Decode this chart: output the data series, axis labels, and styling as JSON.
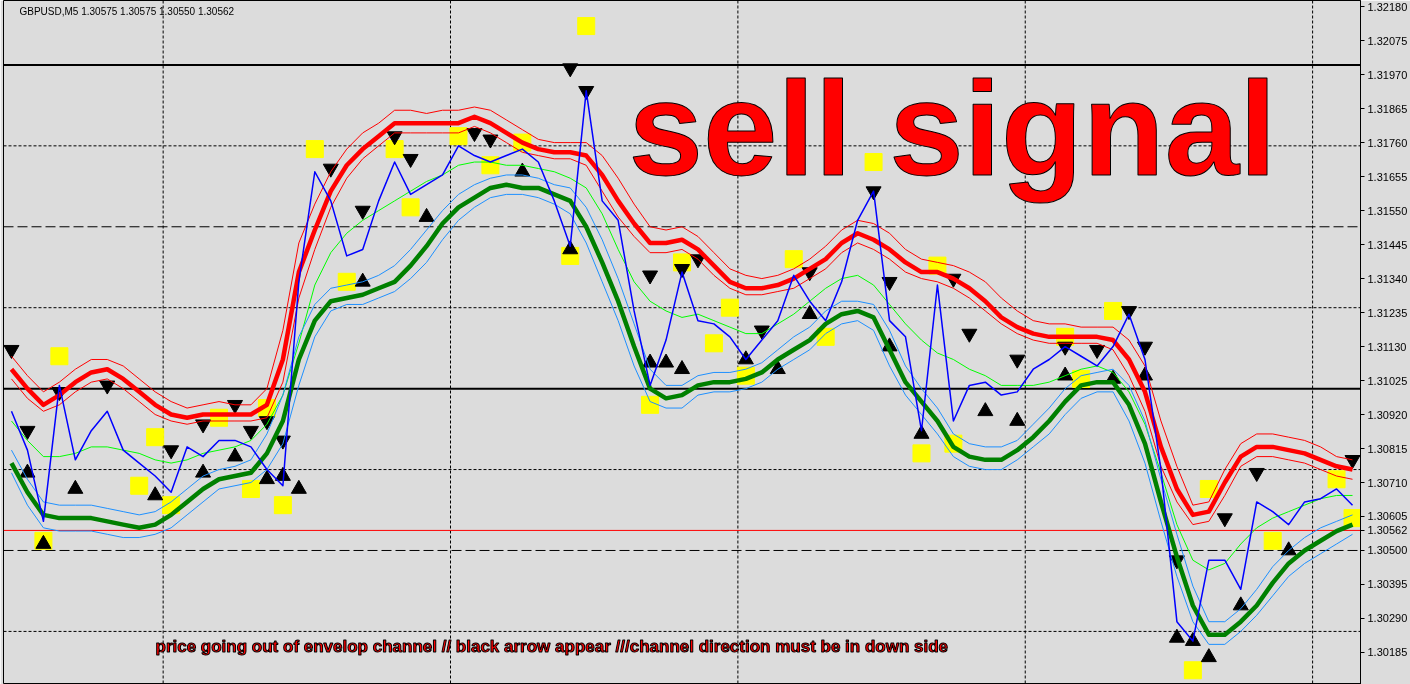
{
  "chart_data": {
    "type": "line",
    "title": "GBPUSD,M5 1.30575 1.30575 1.30550 1.30562",
    "annotations": [
      "sell signal",
      "price going out of envelop channel // black arrow appear ///channel direction must be in down side"
    ],
    "categories": [
      null,
      null,
      null,
      null,
      null,
      null,
      null,
      null,
      null,
      null,
      null,
      null,
      null,
      null,
      null,
      null,
      null,
      null,
      null,
      null,
      null,
      null,
      null,
      null,
      null,
      null,
      null,
      null,
      null,
      null,
      null,
      null,
      null,
      null,
      null,
      null,
      null,
      null,
      null,
      null,
      null,
      null,
      null,
      null,
      null,
      null,
      null,
      null,
      null,
      null,
      null,
      null,
      null,
      null,
      null,
      null,
      null,
      null,
      null,
      null,
      null,
      null,
      null,
      null,
      null,
      null,
      null,
      null,
      null,
      null,
      null,
      null,
      null,
      null,
      null,
      null,
      null,
      null,
      null,
      null,
      null,
      null,
      null,
      null,
      null
    ],
    "series": [
      {
        "color": "#ff0000",
        "values": [
          1.311,
          1.3104,
          1.3099,
          1.3102,
          1.3106,
          1.3109,
          1.3109,
          1.3107,
          1.3103,
          1.3099,
          1.3096,
          1.3094,
          1.3095,
          1.3096,
          1.3095,
          1.3095,
          1.31,
          1.3118,
          1.3145,
          1.3157,
          1.3167,
          1.3174,
          1.3179,
          1.3182,
          1.3186,
          1.3186,
          1.3185,
          1.3186,
          1.3186,
          1.3187,
          1.3186,
          1.3183,
          1.318,
          1.3177,
          1.3176,
          1.3176,
          1.3176,
          1.3172,
          1.3165,
          1.3157,
          1.315,
          1.3149,
          1.315,
          1.3147,
          1.3142,
          1.3137,
          1.3135,
          1.3134,
          1.3135,
          1.3137,
          1.314,
          1.3144,
          1.3149,
          1.3152,
          1.3151,
          1.3148,
          1.3143,
          1.314,
          1.3139,
          1.3138,
          1.3136,
          1.3133,
          1.3128,
          1.3124,
          1.3121,
          1.312,
          1.312,
          1.3119,
          1.3119,
          1.3119,
          1.3115,
          1.3107,
          1.309,
          1.3076,
          1.3064,
          1.3065,
          1.3075,
          1.3083,
          1.3086,
          1.3086,
          1.3085,
          1.3084,
          1.3082,
          1.3079,
          1.3078
        ]
      },
      {
        "color": "#ff0000",
        "values": [
          1.3103,
          1.3097,
          1.3093,
          1.3095,
          1.3099,
          1.3102,
          1.3103,
          1.31,
          1.3096,
          1.3092,
          1.309,
          1.3089,
          1.309,
          1.309,
          1.309,
          1.309,
          1.3091,
          1.3102,
          1.3128,
          1.3143,
          1.3156,
          1.3165,
          1.3171,
          1.3175,
          1.3179,
          1.3179,
          1.3179,
          1.3179,
          1.3179,
          1.3181,
          1.3179,
          1.3176,
          1.3173,
          1.3172,
          1.3171,
          1.3171,
          1.3169,
          1.3161,
          1.3153,
          1.3147,
          1.3142,
          1.3142,
          1.3143,
          1.314,
          1.3135,
          1.3131,
          1.3129,
          1.3129,
          1.313,
          1.3131,
          1.3134,
          1.3137,
          1.3142,
          1.3145,
          1.3143,
          1.314,
          1.3136,
          1.3134,
          1.3133,
          1.3131,
          1.3128,
          1.3124,
          1.312,
          1.3117,
          1.3115,
          1.3114,
          1.3114,
          1.3114,
          1.3114,
          1.3112,
          1.3104,
          1.3093,
          1.3076,
          1.3065,
          1.3058,
          1.3059,
          1.3067,
          1.3076,
          1.3079,
          1.3079,
          1.3078,
          1.3077,
          1.3075,
          1.3073,
          1.3072
        ]
      },
      {
        "color": "#00ff00",
        "values": [
          1.309,
          1.3084,
          1.3079,
          1.3079,
          1.308,
          1.3082,
          1.3082,
          1.3081,
          1.308,
          1.3078,
          1.3077,
          1.3078,
          1.308,
          1.3081,
          1.3082,
          1.3084,
          1.3089,
          1.3098,
          1.3114,
          1.3132,
          1.3142,
          1.3148,
          1.3152,
          1.3155,
          1.3158,
          1.3161,
          1.3164,
          1.3166,
          1.3169,
          1.317,
          1.317,
          1.3169,
          1.3169,
          1.3168,
          1.3167,
          1.3165,
          1.3162,
          1.3154,
          1.3143,
          1.3133,
          1.3127,
          1.3124,
          1.3122,
          1.3123,
          1.3121,
          1.3119,
          1.3117,
          1.3117,
          1.312,
          1.3123,
          1.3127,
          1.3131,
          1.3134,
          1.3135,
          1.3132,
          1.3126,
          1.312,
          1.3115,
          1.3111,
          1.3109,
          1.3106,
          1.3104,
          1.3101,
          1.3101,
          1.3101,
          1.3102,
          1.3104,
          1.3106,
          1.3107,
          1.3105,
          1.3099,
          1.3089,
          1.3074,
          1.3058,
          1.3047,
          1.3044,
          1.3046,
          1.3052,
          1.3057,
          1.306,
          1.3062,
          1.3064,
          1.3066,
          1.3067,
          1.3067
        ]
      },
      {
        "color": "#1e90ff",
        "values": [
          1.3081,
          1.3072,
          1.3065,
          1.3064,
          1.3064,
          1.3064,
          1.3063,
          1.3062,
          1.3061,
          1.3062,
          1.3065,
          1.3069,
          1.3073,
          1.3075,
          1.3076,
          1.3078,
          1.3086,
          1.3098,
          1.3116,
          1.3126,
          1.3131,
          1.3132,
          1.3133,
          1.3135,
          1.3138,
          1.3143,
          1.3149,
          1.3155,
          1.316,
          1.3163,
          1.3165,
          1.3166,
          1.3166,
          1.3165,
          1.3163,
          1.3162,
          1.3156,
          1.3146,
          1.3134,
          1.312,
          1.3106,
          1.3101,
          1.3101,
          1.3104,
          1.3105,
          1.3105,
          1.3106,
          1.3108,
          1.3112,
          1.3116,
          1.3119,
          1.3124,
          1.3127,
          1.3127,
          1.3126,
          1.3118,
          1.3107,
          1.31,
          1.3094,
          1.3086,
          1.3083,
          1.3082,
          1.3082,
          1.3084,
          1.3089,
          1.3094,
          1.31,
          1.3104,
          1.3105,
          1.3106,
          1.3101,
          1.309,
          1.3072,
          1.3055,
          1.3039,
          1.3028,
          1.3028,
          1.3032,
          1.3038,
          1.3045,
          1.305,
          1.3054,
          1.3057,
          1.3059,
          1.3061
        ]
      },
      {
        "color": "#1e90ff",
        "values": [
          1.3074,
          1.3064,
          1.3057,
          1.3056,
          1.3056,
          1.3056,
          1.3055,
          1.3054,
          1.3054,
          1.3055,
          1.3057,
          1.3061,
          1.3065,
          1.3069,
          1.307,
          1.3071,
          1.3075,
          1.3083,
          1.3101,
          1.3116,
          1.3124,
          1.3126,
          1.3126,
          1.3128,
          1.313,
          1.3134,
          1.3139,
          1.3146,
          1.3152,
          1.3156,
          1.3159,
          1.316,
          1.316,
          1.3159,
          1.3157,
          1.3154,
          1.3145,
          1.3133,
          1.3121,
          1.3107,
          1.3096,
          1.3094,
          1.3094,
          1.3098,
          1.3099,
          1.3099,
          1.31,
          1.3102,
          1.3106,
          1.3109,
          1.3112,
          1.3117,
          1.312,
          1.3121,
          1.3118,
          1.3107,
          1.3098,
          1.3092,
          1.3086,
          1.3079,
          1.3076,
          1.3075,
          1.3075,
          1.3078,
          1.3082,
          1.3086,
          1.3092,
          1.3097,
          1.3099,
          1.3099,
          1.309,
          1.3077,
          1.3059,
          1.3042,
          1.3028,
          1.3021,
          1.3021,
          1.3025,
          1.303,
          1.3036,
          1.3042,
          1.3046,
          1.3049,
          1.3052,
          1.3055
        ]
      },
      {
        "color": "#ff0000",
        "values": [
          1.3106,
          1.31,
          1.3095,
          1.3098,
          1.3102,
          1.3105,
          1.3106,
          1.3103,
          1.3099,
          1.3095,
          1.3092,
          1.3091,
          1.3092,
          1.3092,
          1.3092,
          1.3092,
          1.3095,
          1.3109,
          1.3136,
          1.3149,
          1.3161,
          1.3169,
          1.3174,
          1.3178,
          1.3182,
          1.3182,
          1.3182,
          1.3182,
          1.3182,
          1.3184,
          1.3182,
          1.3179,
          1.3176,
          1.3174,
          1.3173,
          1.3173,
          1.3172,
          1.3166,
          1.3158,
          1.3151,
          1.3145,
          1.3145,
          1.3146,
          1.3143,
          1.3138,
          1.3133,
          1.3131,
          1.3131,
          1.3132,
          1.3134,
          1.3137,
          1.314,
          1.3145,
          1.3148,
          1.3146,
          1.3143,
          1.3139,
          1.3136,
          1.3136,
          1.3134,
          1.3131,
          1.3127,
          1.3122,
          1.3119,
          1.3117,
          1.3116,
          1.3116,
          1.3116,
          1.3116,
          1.3115,
          1.3109,
          1.3099,
          1.3082,
          1.3069,
          1.3061,
          1.3062,
          1.3071,
          1.3079,
          1.3082,
          1.3082,
          1.3081,
          1.308,
          1.3078,
          1.3076,
          1.3075
        ]
      },
      {
        "color": "#008000",
        "values": [
          1.3077,
          1.3068,
          1.3061,
          1.306,
          1.306,
          1.306,
          1.3059,
          1.3058,
          1.3057,
          1.3058,
          1.3061,
          1.3065,
          1.3069,
          1.3072,
          1.3073,
          1.3074,
          1.308,
          1.309,
          1.3109,
          1.3121,
          1.3127,
          1.3128,
          1.3129,
          1.3131,
          1.3133,
          1.3138,
          1.3144,
          1.3151,
          1.3156,
          1.3159,
          1.3162,
          1.3163,
          1.3162,
          1.3162,
          1.316,
          1.3158,
          1.315,
          1.3139,
          1.3127,
          1.3113,
          1.31,
          1.3097,
          1.3098,
          1.3101,
          1.3102,
          1.3102,
          1.3103,
          1.3105,
          1.3109,
          1.3112,
          1.3115,
          1.312,
          1.3123,
          1.3124,
          1.3122,
          1.3112,
          1.3102,
          1.3096,
          1.309,
          1.3082,
          1.3079,
          1.3078,
          1.3078,
          1.3081,
          1.3085,
          1.309,
          1.3096,
          1.3101,
          1.3102,
          1.3102,
          1.3095,
          1.3083,
          1.3065,
          1.3048,
          1.3033,
          1.3024,
          1.3024,
          1.3028,
          1.3033,
          1.304,
          1.3046,
          1.305,
          1.3053,
          1.3056,
          1.3058
        ]
      },
      {
        "color": "#0000ff",
        "values": [
          1.3093,
          1.3081,
          1.3059,
          1.3101,
          1.3078,
          1.3087,
          1.3093,
          1.3081,
          1.3077,
          1.3073,
          1.3068,
          1.3082,
          1.3079,
          1.3084,
          1.3084,
          1.3082,
          1.3075,
          1.307,
          1.3133,
          1.3167,
          1.3158,
          1.3141,
          1.3143,
          1.3158,
          1.317,
          1.316,
          1.3163,
          1.3166,
          1.3175,
          1.3172,
          1.317,
          1.3172,
          1.3174,
          1.317,
          1.3158,
          1.3144,
          1.3192,
          1.3158,
          1.3152,
          1.3124,
          1.3101,
          1.3115,
          1.3136,
          1.3121,
          1.312,
          1.3116,
          1.3109,
          1.3115,
          1.3121,
          1.3135,
          1.3127,
          1.3121,
          1.3133,
          1.3152,
          1.3161,
          1.3121,
          1.3116,
          1.3087,
          1.3132,
          1.309,
          1.3101,
          1.3102,
          1.3098,
          1.3099,
          1.3106,
          1.3109,
          1.3113,
          1.311,
          1.3107,
          1.3113,
          1.3123,
          1.3109,
          1.3075,
          1.3028,
          1.3022,
          1.3047,
          1.3047,
          1.3038,
          1.3065,
          1.3062,
          1.3058,
          1.3065,
          1.3066,
          1.3069,
          1.3064
        ]
      },
      {
        "type": "scatter",
        "marker": "square",
        "color": "#ffff00",
        "values": [
          null,
          null,
          1.3053,
          1.311,
          null,
          null,
          null,
          null,
          1.307,
          1.3085,
          1.3064,
          null,
          null,
          1.3091,
          null,
          1.3069,
          1.3094,
          1.3064,
          null,
          1.3174,
          null,
          1.3133,
          null,
          null,
          1.3174,
          1.3156,
          null,
          null,
          1.3178,
          null,
          1.3169,
          null,
          1.3176,
          null,
          null,
          1.3141,
          1.3212,
          null,
          null,
          null,
          1.3095,
          null,
          1.3139,
          null,
          1.3114,
          1.3125,
          1.3104,
          null,
          null,
          1.314,
          null,
          1.3116,
          null,
          null,
          1.317,
          null,
          null,
          1.308,
          1.3138,
          1.3083,
          null,
          null,
          null,
          null,
          null,
          null,
          1.3116,
          1.3103,
          null,
          1.3124,
          null,
          null,
          null,
          null,
          1.3013,
          1.3069,
          null,
          null,
          null,
          1.3053,
          null,
          null,
          null,
          1.3072,
          1.306
        ]
      },
      {
        "type": "scatter",
        "marker": "triangle",
        "color": "#000000",
        "values": [
          1.3112,
          1.3087,
          null,
          1.3099,
          null,
          null,
          1.3101,
          null,
          null,
          null,
          1.3081,
          null,
          1.3089,
          null,
          1.3095,
          1.3087,
          1.309,
          1.3084,
          null,
          null,
          1.3168,
          null,
          1.3155,
          null,
          1.3178,
          1.3171,
          null,
          null,
          null,
          1.3179,
          1.3177,
          null,
          null,
          null,
          null,
          1.3199,
          1.3192,
          null,
          null,
          null,
          1.3135,
          null,
          1.3137,
          1.314,
          null,
          null,
          null,
          1.3118,
          null,
          null,
          1.3136,
          null,
          null,
          null,
          1.3161,
          1.3133,
          null,
          null,
          null,
          1.3134,
          1.3117,
          null,
          null,
          1.3109,
          null,
          null,
          1.3113,
          null,
          1.3112,
          null,
          1.3124,
          1.3113,
          null,
          1.3047,
          null,
          null,
          1.306,
          null,
          1.3074,
          null,
          null,
          null,
          null,
          null,
          1.3078
        ]
      },
      {
        "type": "scatter",
        "marker": "triangle",
        "color": "#000000",
        "values": [
          null,
          1.3074,
          1.3052,
          null,
          1.3069,
          null,
          null,
          null,
          null,
          1.3067,
          null,
          null,
          1.3074,
          null,
          1.3079,
          null,
          1.3072,
          1.3073,
          1.3069,
          null,
          null,
          null,
          1.3133,
          null,
          null,
          null,
          1.3153,
          null,
          null,
          null,
          null,
          null,
          1.3167,
          null,
          null,
          1.3143,
          null,
          null,
          null,
          null,
          1.3108,
          1.3108,
          1.3106,
          null,
          null,
          null,
          1.3109,
          null,
          1.3106,
          null,
          1.3123,
          null,
          null,
          null,
          null,
          1.3113,
          null,
          1.3086,
          null,
          null,
          null,
          1.3093,
          null,
          1.309,
          null,
          null,
          1.3104,
          null,
          null,
          1.3103,
          null,
          1.3104,
          null,
          1.3023,
          1.3022,
          1.3017,
          null,
          1.3033,
          null,
          null,
          1.305,
          null,
          null,
          null,
          null
        ]
      }
    ],
    "ylim": [
      1.30086,
      1.32199
    ],
    "yticks": [
      {
        "value": 1.3218,
        "label": "1.32180"
      },
      1.32075,
      {
        "value": 1.3197,
        "label": "1.31970"
      },
      1.31865,
      {
        "value": 1.3176,
        "label": "1.31760"
      },
      1.31655,
      {
        "value": 1.3155,
        "label": "1.31550"
      },
      1.31445,
      {
        "value": 1.3134,
        "label": "1.31340"
      },
      1.31235,
      {
        "value": 1.3113,
        "label": "1.31130"
      },
      1.31025,
      {
        "value": 1.3092,
        "label": "1.30920"
      },
      1.30815,
      {
        "value": 1.3071,
        "label": "1.30710"
      },
      1.30605,
      {
        "value": 1.305,
        "label": "1.30500"
      },
      1.30395,
      {
        "value": 1.3029,
        "label": "1.30290"
      },
      1.30185
    ],
    "ref_lines": [
      {
        "axis": "y",
        "value": 1.32,
        "color": "#000000",
        "line_style": "solid"
      },
      {
        "axis": "y",
        "value": 1.31,
        "color": "#000000",
        "line_style": "solid"
      },
      {
        "axis": "y",
        "value": 1.315,
        "color": "#000000",
        "line_style": "dashed"
      },
      {
        "axis": "y",
        "value": 1.305,
        "color": "#000000",
        "line_style": "dashed"
      },
      {
        "axis": "y",
        "value": 1.3175,
        "color": "#000000",
        "line_style": "dotted"
      },
      {
        "axis": "y",
        "value": 1.3125,
        "color": "#000000",
        "line_style": "dotted"
      },
      {
        "axis": "y",
        "value": 1.3075,
        "color": "#000000",
        "line_style": "dotted"
      },
      {
        "axis": "y",
        "value": 1.3025,
        "color": "#000000",
        "line_style": "dotted"
      },
      {
        "axis": "y",
        "value": 1.30562,
        "label": "1.30562",
        "color": "#ff0000",
        "line_style": "solid"
      }
    ],
    "grid": false,
    "tick_labels": "y"
  }
}
